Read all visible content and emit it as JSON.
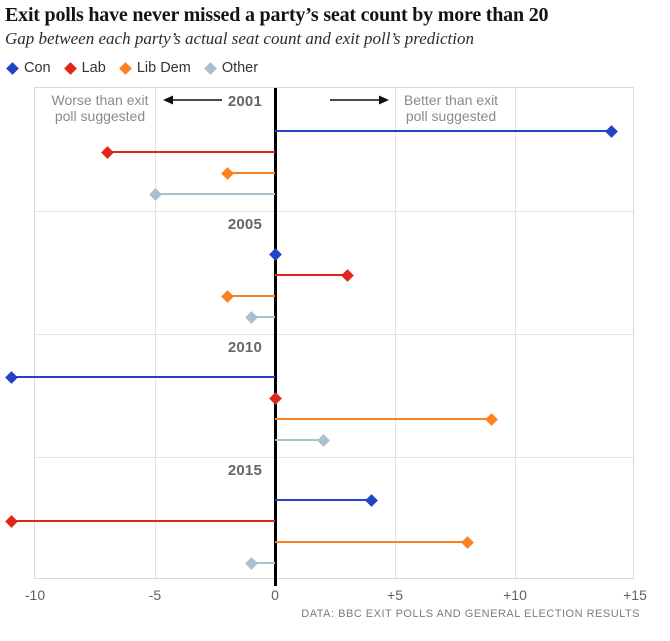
{
  "title": "Exit polls have never missed a party’s seat count by more than 20",
  "subtitle": "Gap between each party’s actual seat count and exit poll’s prediction",
  "legend": {
    "items": [
      {
        "label": "Con",
        "color": "#2144c4"
      },
      {
        "label": "Lab",
        "color": "#e2251b"
      },
      {
        "label": "Lib Dem",
        "color": "#fb8122"
      },
      {
        "label": "Other",
        "color": "#a9c1ca"
      }
    ]
  },
  "annotations": {
    "worse": "Worse than exit\npoll suggested",
    "better": "Better than exit\npoll suggested"
  },
  "footer": "DATA: BBC EXIT POLLS AND GENERAL ELECTION RESULTS",
  "chart_data": {
    "type": "lollipop",
    "categories": [
      "2001",
      "2005",
      "2010",
      "2015"
    ],
    "series": [
      {
        "name": "Con",
        "color": "#2144c4",
        "values": [
          14,
          0,
          -11,
          4
        ]
      },
      {
        "name": "Lab",
        "color": "#e2251b",
        "values": [
          -7,
          3,
          0,
          -11
        ]
      },
      {
        "name": "Lib Dem",
        "color": "#fb8122",
        "values": [
          -2,
          -2,
          9,
          8
        ]
      },
      {
        "name": "Other",
        "color": "#a9c1ca",
        "values": [
          -5,
          -1,
          2,
          -1
        ]
      }
    ],
    "xlim": [
      -10,
      15
    ],
    "xticks": [
      {
        "v": -10,
        "label": "-10"
      },
      {
        "v": -5,
        "label": "-5"
      },
      {
        "v": 0,
        "label": "0"
      },
      {
        "v": 5,
        "label": "+5"
      },
      {
        "v": 10,
        "label": "+10"
      },
      {
        "v": 15,
        "label": "+15"
      }
    ],
    "gridlines_x": [
      -5,
      5,
      10
    ],
    "zero_axis": 0,
    "grid": true,
    "legend_position": "top",
    "xlabel": "",
    "ylabel": ""
  }
}
